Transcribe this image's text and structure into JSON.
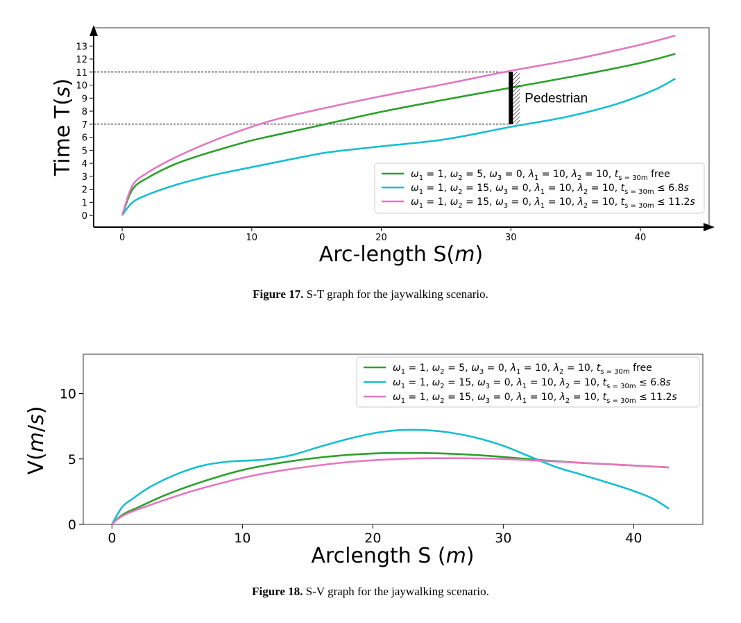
{
  "figures": [
    {
      "caption_label": "Figure 17.",
      "caption_text": "S-T graph for the jaywalking scenario."
    },
    {
      "caption_label": "Figure 18.",
      "caption_text": "S-V graph for the jaywalking scenario."
    }
  ],
  "chart_data": [
    {
      "type": "line",
      "xlabel": "Arc-length S(m)",
      "ylabel": "Time T(s)",
      "xlim": [
        -2.2,
        45.3
      ],
      "ylim": [
        -0.9,
        14.4
      ],
      "x_ticks": [
        0,
        10,
        20,
        30,
        40
      ],
      "y_ticks": [
        0,
        1,
        2,
        3,
        4,
        5,
        6,
        7,
        8,
        9,
        10,
        11,
        12,
        13
      ],
      "reference_lines_y": [
        7,
        11
      ],
      "annotation": {
        "text": "Pedestrian",
        "x": 30,
        "y_range": [
          7,
          11
        ]
      },
      "legend_position": "lower-right",
      "series": [
        {
          "name": "ω1 = 1, ω2 = 5, ω3 = 0, λ1 = 10, λ2 = 10, ts=30m free",
          "color": "#2ca02c",
          "x": [
            0,
            0.8,
            2,
            4,
            6,
            8,
            10,
            12,
            15,
            20,
            25,
            30,
            35,
            40,
            42.7
          ],
          "y": [
            0,
            2.0,
            2.9,
            3.9,
            4.6,
            5.2,
            5.75,
            6.2,
            6.85,
            7.95,
            8.9,
            9.8,
            10.7,
            11.7,
            12.4
          ]
        },
        {
          "name": "ω1 = 1, ω2 = 15, ω3 = 0, λ1 = 10, λ2 = 10, ts=30m ≤ 6.8s",
          "color": "#17becf",
          "x": [
            0,
            0.8,
            2,
            4,
            6,
            8,
            10,
            12,
            14,
            16,
            20,
            25,
            30,
            34,
            38,
            41,
            42.7
          ],
          "y": [
            0,
            1.0,
            1.6,
            2.3,
            2.85,
            3.3,
            3.7,
            4.1,
            4.5,
            4.85,
            5.3,
            5.85,
            6.8,
            7.5,
            8.5,
            9.6,
            10.5
          ]
        },
        {
          "name": "ω1 = 1, ω2 = 15, ω3 = 0, λ1 = 10, λ2 = 10, ts=30m ≤ 11.2s",
          "color": "#e377c2",
          "x": [
            0,
            0.8,
            2,
            4,
            6,
            8,
            10,
            12,
            15,
            20,
            25,
            30,
            35,
            40,
            42.7
          ],
          "y": [
            0,
            2.3,
            3.3,
            4.4,
            5.3,
            6.1,
            6.8,
            7.4,
            8.1,
            9.15,
            10.1,
            11.1,
            12.0,
            13.1,
            13.8
          ]
        }
      ]
    },
    {
      "type": "line",
      "xlabel": "Arclength S (m)",
      "ylabel": "V(m/s)",
      "xlim": [
        -2.2,
        45.3
      ],
      "ylim": [
        0,
        13
      ],
      "x_ticks": [
        0,
        10,
        20,
        30,
        40
      ],
      "y_ticks": [
        0,
        5,
        10
      ],
      "legend_position": "top-right",
      "series": [
        {
          "name": "ω1 = 1, ω2 = 5, ω3 = 0, λ1 = 10, λ2 = 10, ts=30m free",
          "color": "#2ca02c",
          "x": [
            0,
            0.5,
            1,
            2,
            4,
            6,
            8,
            10,
            12,
            15,
            18,
            21,
            24,
            27,
            30,
            33,
            36,
            39,
            42.7
          ],
          "y": [
            0,
            0.5,
            0.85,
            1.3,
            2.2,
            2.95,
            3.6,
            4.15,
            4.55,
            5.0,
            5.3,
            5.45,
            5.45,
            5.35,
            5.15,
            4.9,
            4.7,
            4.55,
            4.35
          ]
        },
        {
          "name": "ω1 = 1, ω2 = 15, ω3 = 0, λ1 = 10, λ2 = 10, ts=30m ≤ 6.8s",
          "color": "#17becf",
          "x": [
            0,
            0.5,
            0.9,
            1.5,
            3,
            5,
            7,
            9,
            11,
            12.5,
            14,
            16,
            18,
            20,
            22,
            24,
            26,
            28,
            30,
            32,
            34,
            36,
            38,
            40,
            41.5,
            42.7
          ],
          "y": [
            0,
            0.9,
            1.45,
            1.9,
            2.9,
            3.85,
            4.5,
            4.8,
            4.9,
            5.05,
            5.35,
            5.95,
            6.5,
            6.95,
            7.2,
            7.2,
            7.0,
            6.6,
            6.0,
            5.2,
            4.4,
            3.8,
            3.2,
            2.55,
            1.95,
            1.2
          ]
        },
        {
          "name": "ω1 = 1, ω2 = 15, ω3 = 0, λ1 = 10, λ2 = 10, ts=30m ≤ 11.2s",
          "color": "#e377c2",
          "x": [
            0,
            0.5,
            1,
            2,
            4,
            6,
            8,
            10,
            12,
            15,
            18,
            21,
            24,
            27,
            30,
            33,
            36,
            39,
            42.7
          ],
          "y": [
            0,
            0.45,
            0.75,
            1.15,
            1.85,
            2.5,
            3.05,
            3.55,
            3.95,
            4.4,
            4.75,
            4.95,
            5.05,
            5.05,
            5.0,
            4.85,
            4.7,
            4.55,
            4.35
          ]
        }
      ]
    }
  ]
}
